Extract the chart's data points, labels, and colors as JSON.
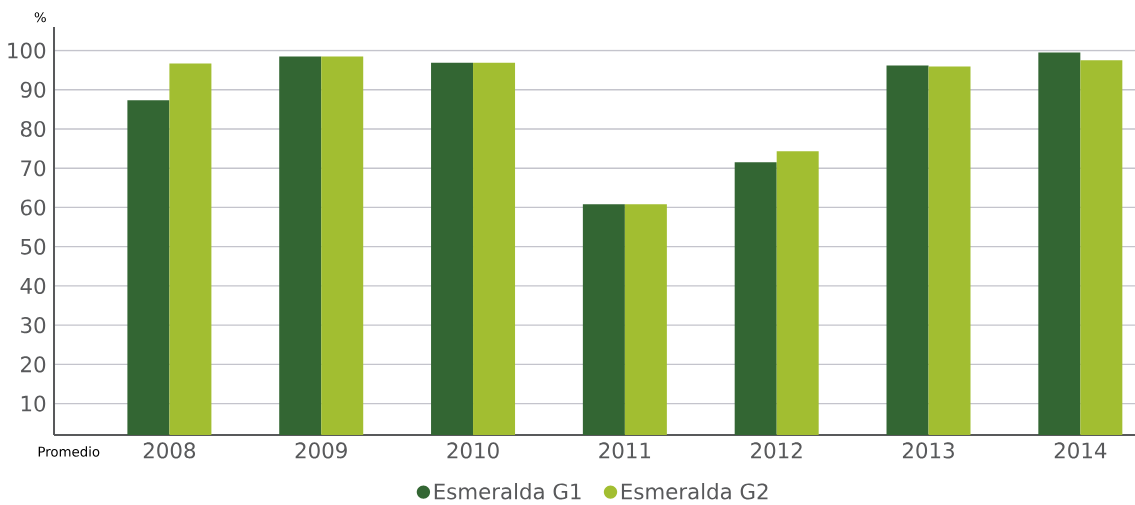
{
  "chart_data": {
    "type": "bar",
    "ylabel": "%",
    "xlabel": "Promedio",
    "categories": [
      "2008",
      "2009",
      "2010",
      "2011",
      "2012",
      "2013",
      "2014"
    ],
    "series": [
      {
        "name": "Esmeralda G1",
        "color": "#336633",
        "values": [
          87.3,
          98.5,
          96.9,
          60.8,
          71.5,
          96.2,
          99.5
        ]
      },
      {
        "name": "Esmeralda G2",
        "color": "#a2be31",
        "values": [
          96.7,
          98.5,
          96.9,
          60.8,
          74.3,
          95.9,
          97.5
        ]
      }
    ],
    "ylim": [
      2,
      106
    ],
    "yticks": [
      10,
      20,
      30,
      40,
      50,
      60,
      70,
      80,
      90,
      100
    ],
    "grid": "y",
    "legend": "bottom"
  }
}
